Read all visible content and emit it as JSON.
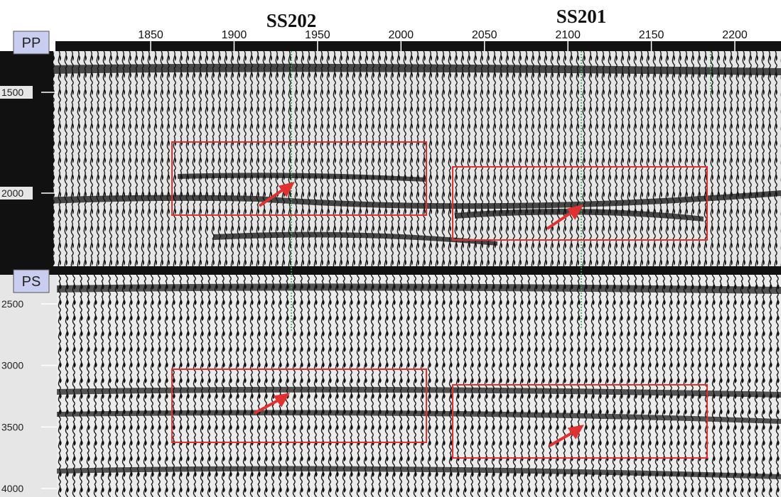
{
  "wells": [
    {
      "label": "SS202"
    },
    {
      "label": "SS201"
    }
  ],
  "xticks": [
    1850,
    1900,
    1950,
    2000,
    2050,
    2100,
    2150,
    2200
  ],
  "panels": [
    {
      "label": "PP",
      "yticks": [
        1500,
        2000
      ]
    },
    {
      "label": "PS",
      "yticks": [
        2500,
        3000,
        3500,
        4000
      ]
    }
  ]
}
